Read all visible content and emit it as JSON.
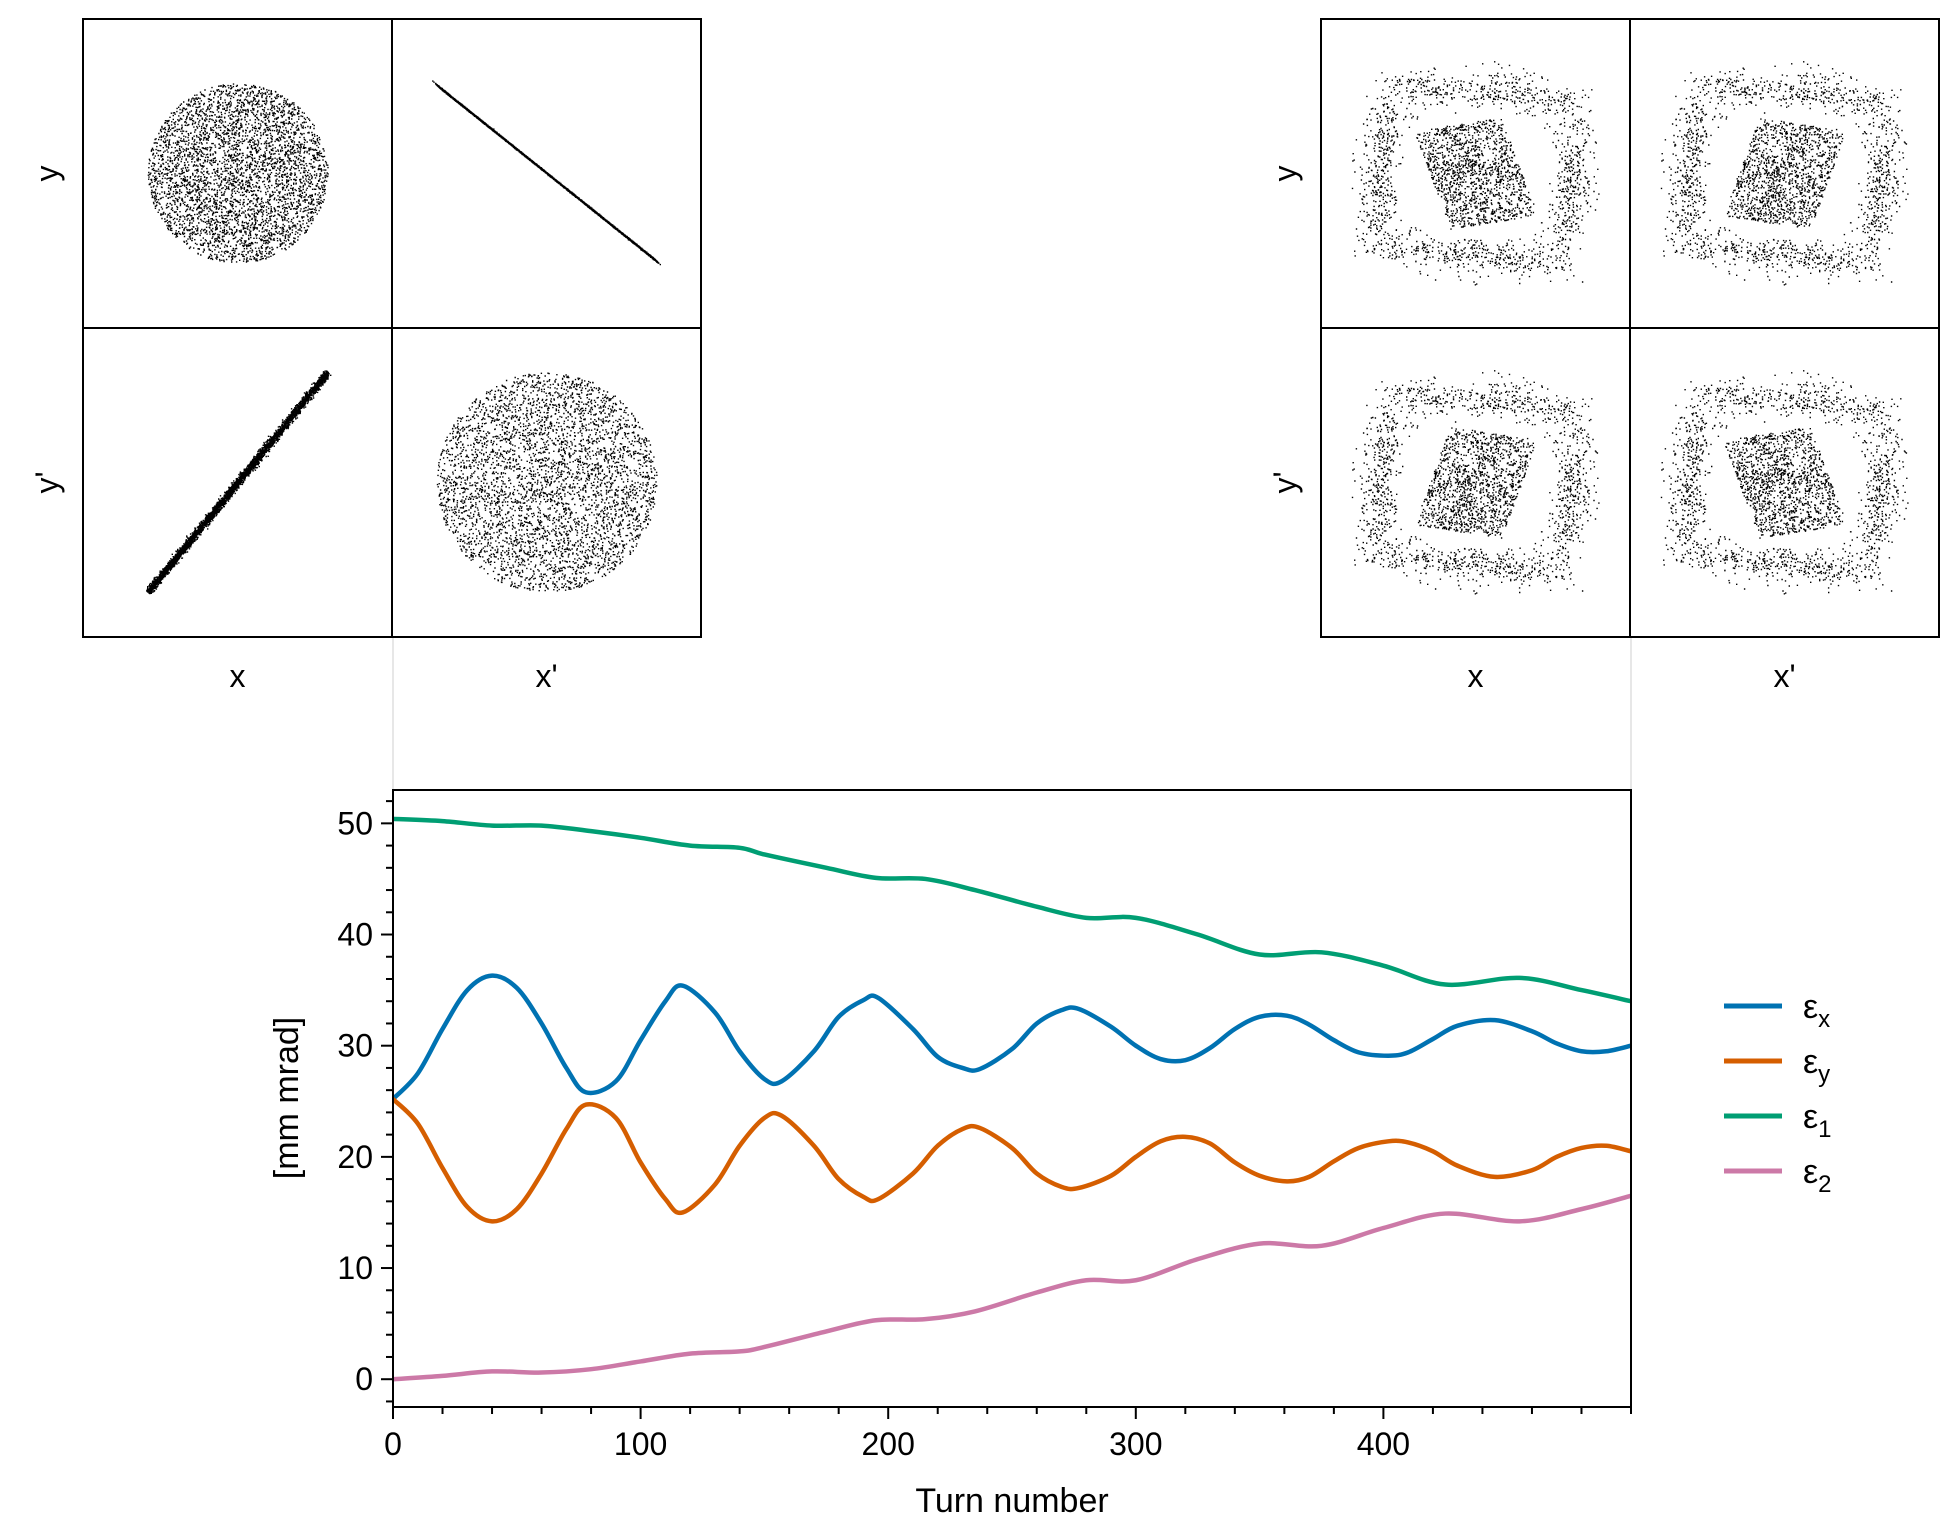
{
  "chart_data": [
    {
      "type": "scatter",
      "panel": "initial-distribution-corner",
      "grid": [
        [
          "x-y",
          "x'-y"
        ],
        [
          "x-y'",
          "x'-y'"
        ]
      ],
      "xlabels": [
        "x",
        "x'"
      ],
      "ylabels": [
        "y",
        "y'"
      ],
      "axis_ticks": "none",
      "color": "#000000"
    },
    {
      "type": "scatter",
      "panel": "final-distribution-corner",
      "grid": [
        [
          "x-y",
          "x'-y"
        ],
        [
          "x-y'",
          "x'-y'"
        ]
      ],
      "xlabels": [
        "x",
        "x'"
      ],
      "ylabels": [
        "y",
        "y'"
      ],
      "axis_ticks": "none",
      "color": "#000000"
    },
    {
      "type": "line",
      "xlabel": "Turn number",
      "ylabel": "[mm mrad]",
      "xlim": [
        0,
        500
      ],
      "ylim": [
        -2.5,
        53
      ],
      "xticks": [
        0,
        100,
        200,
        300,
        400
      ],
      "yticks": [
        0,
        10,
        20,
        30,
        40,
        50
      ],
      "legend_position": "right",
      "grid": false,
      "series": [
        {
          "name": "εx",
          "base": "ε",
          "sub": "x",
          "color": "#0072B2",
          "x": [
            0,
            10,
            20,
            30,
            40,
            50,
            60,
            70,
            78,
            90,
            100,
            110,
            117,
            130,
            140,
            150,
            157,
            170,
            180,
            190,
            196,
            210,
            220,
            230,
            237,
            250,
            260,
            270,
            277,
            290,
            300,
            310,
            320,
            330,
            340,
            350,
            361,
            370,
            380,
            390,
            402,
            410,
            420,
            430,
            445,
            460,
            470,
            480,
            490,
            500
          ],
          "y": [
            25.2,
            27.5,
            31.5,
            35,
            36.3,
            35.2,
            32,
            28,
            25.8,
            26.8,
            30.5,
            34,
            35.4,
            33,
            29.5,
            27,
            26.8,
            29.5,
            32.6,
            34.1,
            34.3,
            31.5,
            29,
            28,
            27.9,
            29.7,
            32,
            33.2,
            33.3,
            31.7,
            30,
            28.8,
            28.7,
            29.8,
            31.5,
            32.6,
            32.7,
            31.9,
            30.5,
            29.4,
            29.1,
            29.4,
            30.6,
            31.8,
            32.3,
            31.3,
            30.2,
            29.5,
            29.5,
            30
          ]
        },
        {
          "name": "εy",
          "base": "ε",
          "sub": "y",
          "color": "#D55E00",
          "x": [
            0,
            10,
            20,
            30,
            40,
            50,
            60,
            70,
            78,
            90,
            100,
            110,
            117,
            130,
            140,
            150,
            157,
            170,
            180,
            190,
            196,
            210,
            220,
            230,
            237,
            250,
            260,
            270,
            277,
            290,
            300,
            310,
            320,
            330,
            340,
            350,
            361,
            370,
            380,
            390,
            402,
            410,
            420,
            430,
            445,
            460,
            470,
            480,
            490,
            500
          ],
          "y": [
            25.2,
            23,
            19,
            15.5,
            14.2,
            15.3,
            18.5,
            22.5,
            24.7,
            23.5,
            19.5,
            16.2,
            15,
            17.5,
            21,
            23.5,
            23.7,
            21,
            18,
            16.4,
            16.2,
            18.5,
            21,
            22.5,
            22.6,
            20.8,
            18.5,
            17.3,
            17.2,
            18.3,
            20,
            21.4,
            21.8,
            21.2,
            19.5,
            18.3,
            17.8,
            18.2,
            19.6,
            20.8,
            21.4,
            21.3,
            20.5,
            19.2,
            18.2,
            18.8,
            20,
            20.8,
            21,
            20.5
          ]
        },
        {
          "name": "ε1",
          "base": "ε",
          "sub": "1",
          "color": "#009E73",
          "x": [
            0,
            20,
            40,
            60,
            80,
            100,
            120,
            140,
            150,
            175,
            195,
            215,
            235,
            260,
            280,
            300,
            325,
            350,
            375,
            400,
            425,
            455,
            480,
            500
          ],
          "y": [
            50.4,
            50.2,
            49.8,
            49.8,
            49.3,
            48.7,
            48,
            47.8,
            47.2,
            46,
            45.1,
            45,
            44,
            42.5,
            41.5,
            41.5,
            40,
            38.2,
            38.4,
            37.2,
            35.5,
            36.1,
            35,
            34
          ]
        },
        {
          "name": "ε2",
          "base": "ε",
          "sub": "2",
          "color": "#CC79A7",
          "x": [
            0,
            20,
            40,
            60,
            80,
            100,
            120,
            140,
            150,
            175,
            195,
            215,
            235,
            260,
            280,
            300,
            325,
            350,
            375,
            400,
            425,
            455,
            480,
            500
          ],
          "y": [
            0,
            0.3,
            0.7,
            0.6,
            0.9,
            1.6,
            2.3,
            2.5,
            2.9,
            4.3,
            5.3,
            5.4,
            6.1,
            7.8,
            8.9,
            8.9,
            10.8,
            12.2,
            12,
            13.6,
            14.9,
            14.2,
            15.3,
            16.5
          ]
        }
      ]
    }
  ]
}
